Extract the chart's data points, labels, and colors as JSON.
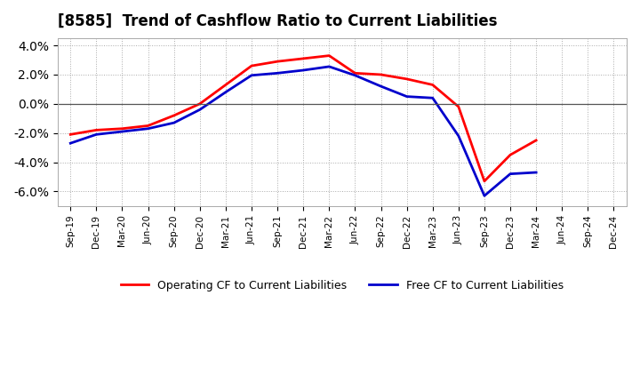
{
  "title": "[8585]  Trend of Cashflow Ratio to Current Liabilities",
  "x_labels": [
    "Sep-19",
    "Dec-19",
    "Mar-20",
    "Jun-20",
    "Sep-20",
    "Dec-20",
    "Mar-21",
    "Jun-21",
    "Sep-21",
    "Dec-21",
    "Mar-22",
    "Jun-22",
    "Sep-22",
    "Dec-22",
    "Mar-23",
    "Jun-23",
    "Sep-23",
    "Dec-23",
    "Mar-24",
    "Jun-24",
    "Sep-24",
    "Dec-24"
  ],
  "operating_cf": [
    -2.1,
    -1.8,
    -1.7,
    -1.5,
    -0.8,
    0.0,
    1.3,
    2.6,
    2.9,
    3.1,
    3.3,
    2.1,
    2.0,
    1.7,
    1.3,
    -0.2,
    -5.3,
    -3.5,
    -2.5,
    null,
    null,
    null
  ],
  "free_cf": [
    -2.7,
    -2.1,
    -1.9,
    -1.7,
    -1.3,
    -0.4,
    0.8,
    1.95,
    2.1,
    2.3,
    2.55,
    1.95,
    1.2,
    0.5,
    0.4,
    -2.2,
    -6.3,
    -4.8,
    -4.7,
    null,
    null,
    null
  ],
  "ylim": [
    -7.0,
    4.5
  ],
  "yticks": [
    -6.0,
    -4.0,
    -2.0,
    0.0,
    2.0,
    4.0
  ],
  "operating_color": "#ff0000",
  "free_color": "#0000cc",
  "background_color": "#ffffff",
  "grid_color": "#aaaaaa",
  "legend_operating": "Operating CF to Current Liabilities",
  "legend_free": "Free CF to Current Liabilities",
  "linewidth": 2.0
}
